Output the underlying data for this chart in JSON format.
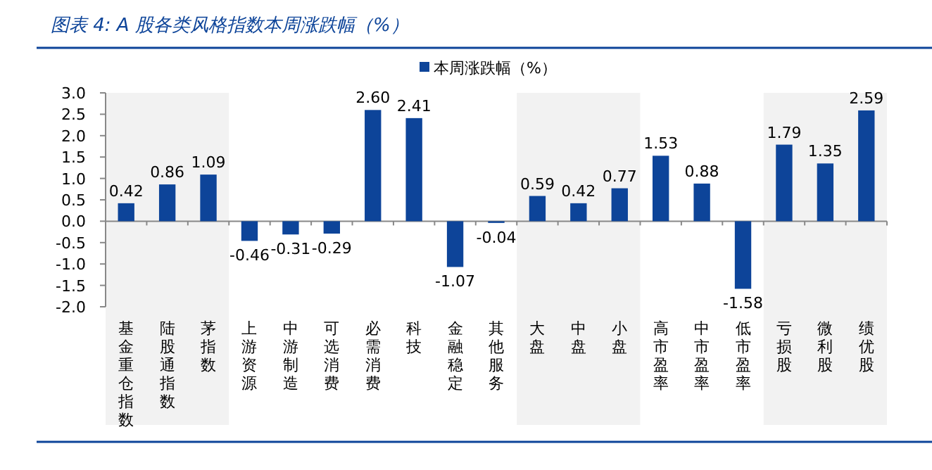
{
  "chart_data": {
    "type": "bar",
    "title": "图表 4:  A 股各类风格指数本周涨跌幅（%）",
    "categories": [
      "基金重仓指数",
      "陆股通指数",
      "茅指数",
      "上游资源",
      "中游制造",
      "可选消费",
      "必需消费",
      "科技",
      "金融稳定",
      "其他服务",
      "大盘",
      "中盘",
      "小盘",
      "高市盈率",
      "中市盈率",
      "低市盈率",
      "亏损股",
      "微利股",
      "绩优股"
    ],
    "series": [
      {
        "name": "本周涨跌幅（%）",
        "color": "#0d4499",
        "values": [
          0.42,
          0.86,
          1.09,
          -0.46,
          -0.31,
          -0.29,
          2.6,
          2.41,
          -1.07,
          -0.04,
          0.59,
          0.42,
          0.77,
          1.53,
          0.88,
          -1.58,
          1.79,
          1.35,
          2.59
        ]
      }
    ],
    "value_labels": [
      "0.42",
      "0.86",
      "1.09",
      "-0.46",
      "-0.31",
      "-0.29",
      "2.60",
      "2.41",
      "-1.07",
      "-0.04",
      "0.59",
      "0.42",
      "0.77",
      "1.53",
      "0.88",
      "-1.58",
      "1.79",
      "1.35",
      "2.59"
    ],
    "ylim": [
      -2.0,
      3.0
    ],
    "yticks": [
      {
        "value": 3.0,
        "label": "3.0"
      },
      {
        "value": 2.5,
        "label": "2.5"
      },
      {
        "value": 2.0,
        "label": "2.0"
      },
      {
        "value": 1.5,
        "label": "1.5"
      },
      {
        "value": 1.0,
        "label": "1.0"
      },
      {
        "value": 0.5,
        "label": "0.5"
      },
      {
        "value": 0.0,
        "label": "0.0"
      },
      {
        "value": -0.5,
        "label": "-0.5"
      },
      {
        "value": -1.0,
        "label": "-1.0"
      },
      {
        "value": -1.5,
        "label": "-1.5"
      },
      {
        "value": -2.0,
        "label": "-2.0"
      }
    ],
    "bands": [
      {
        "axis": "x",
        "from": "基金重仓指数",
        "to": "茅指数",
        "color": "#f2f2f2"
      },
      {
        "axis": "x",
        "from": "大盘",
        "to": "小盘",
        "color": "#f2f2f2"
      },
      {
        "axis": "x",
        "from": "亏损股",
        "to": "绩优股",
        "color": "#f2f2f2"
      }
    ],
    "legend": "top"
  }
}
